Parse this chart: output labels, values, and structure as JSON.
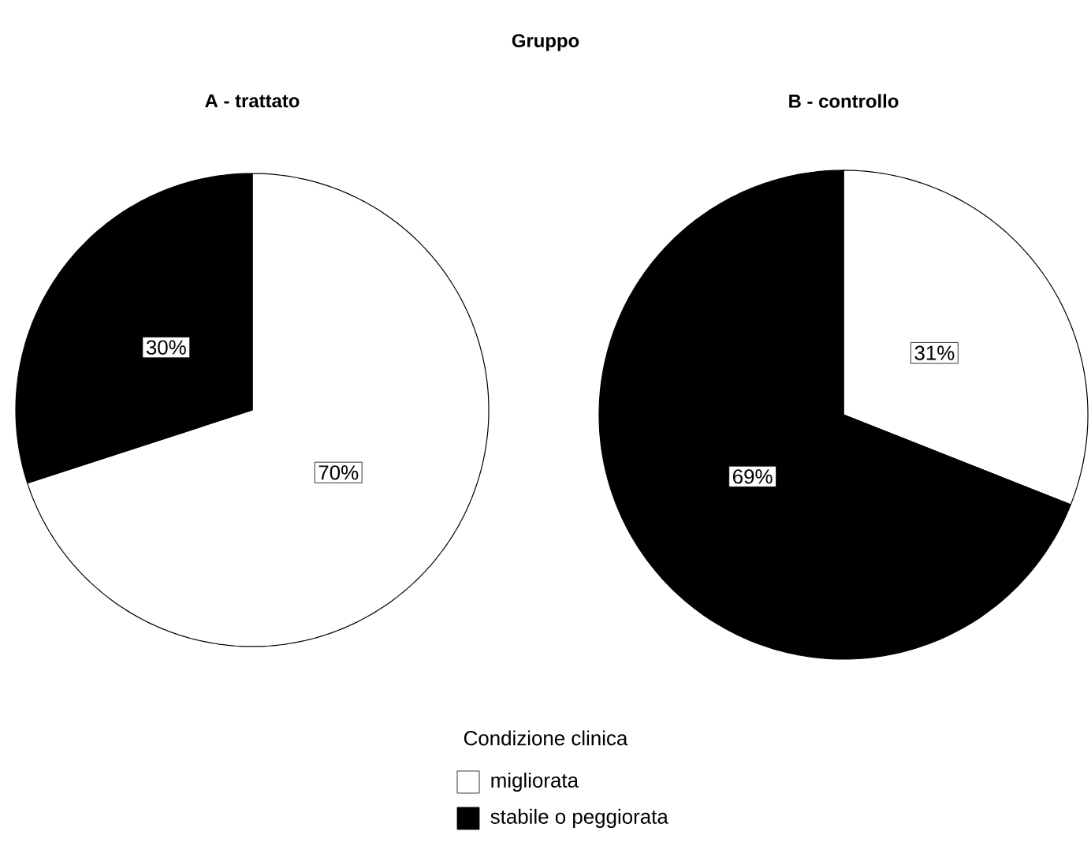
{
  "chart_data": [
    {
      "type": "pie",
      "title": "Gruppo",
      "subtitle": "A - trattato",
      "categories": [
        "migliorata",
        "stabile o peggiorata"
      ],
      "values": [
        70,
        30
      ],
      "colors": [
        "#ffffff",
        "#000000"
      ],
      "value_labels": [
        "70%",
        "30%"
      ],
      "legend_title": "Condizione clinica",
      "legend": "bottom"
    },
    {
      "type": "pie",
      "subtitle": "B - controllo",
      "categories": [
        null,
        null
      ],
      "values": [
        31,
        69
      ],
      "colors": [
        "#ffffff",
        "#000000"
      ],
      "value_labels": [
        "31%",
        "69%"
      ]
    }
  ]
}
